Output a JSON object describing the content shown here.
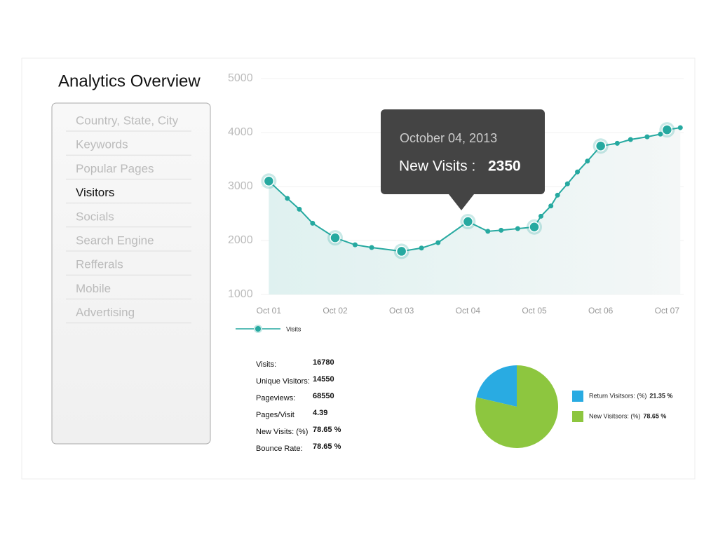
{
  "title": "Analytics Overview",
  "menu": {
    "items": [
      "Country, State, City",
      "Keywords",
      "Popular Pages",
      "Visitors",
      "Socials",
      "Search Engine",
      "Refferals",
      "Mobile",
      "Advertising"
    ],
    "active_index": 3
  },
  "tooltip": {
    "date": "October 04, 2013",
    "label": "New Visits :"
  },
  "stats": {
    "rows": [
      [
        "Visits:",
        "16780"
      ],
      [
        "Unique Visitors:",
        "14550"
      ],
      [
        "Pageviews:",
        "68550"
      ],
      [
        "Pages/Visit",
        "4.39"
      ],
      [
        "New Visits: (%)",
        "78.65 %"
      ],
      [
        "Bounce Rate:",
        "78.65 %"
      ]
    ]
  },
  "chart_data": [
    {
      "type": "line",
      "x": [
        0,
        0.28,
        0.46,
        0.66,
        1,
        1.3,
        1.55,
        2,
        2.3,
        2.55,
        3,
        3.3,
        3.5,
        3.75,
        4,
        4.1,
        4.25,
        4.35,
        4.5,
        4.65,
        4.8,
        5,
        5.25,
        5.45,
        5.7,
        5.9,
        6,
        6.2
      ],
      "series": [
        {
          "name": "Visits",
          "color": "#26a9a0",
          "values": [
            3100,
            2780,
            2580,
            2320,
            2050,
            1920,
            1870,
            1800,
            1860,
            1960,
            2350,
            2170,
            2190,
            2220,
            2250,
            2450,
            2640,
            2840,
            3050,
            3270,
            3470,
            3750,
            3800,
            3870,
            3920,
            3970,
            4050,
            4090
          ]
        }
      ],
      "xlim": [
        -0.12,
        6.25
      ],
      "xticks": [
        {
          "value": 0,
          "label": "Oct 01"
        },
        {
          "value": 1,
          "label": "Oct 02"
        },
        {
          "value": 2,
          "label": "Oct 03"
        },
        {
          "value": 3,
          "label": "Oct 04"
        },
        {
          "value": 4,
          "label": "Oct 05"
        },
        {
          "value": 5,
          "label": "Oct 06"
        },
        {
          "value": 6,
          "label": "Oct 07"
        }
      ],
      "ylim": [
        1000,
        5000
      ],
      "yticks": [
        1000,
        2000,
        3000,
        4000,
        5000
      ],
      "grid": true
    },
    {
      "type": "pie",
      "categories": [
        "Return Visitsors: (%)",
        "New Visitsors: (%)"
      ],
      "values": [
        21.35,
        78.65
      ],
      "value_labels": [
        "21.35 %",
        "78.65 %"
      ],
      "colors": [
        "#29abe2",
        "#8dc63f"
      ]
    }
  ]
}
